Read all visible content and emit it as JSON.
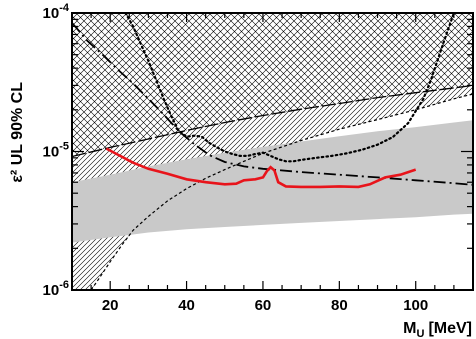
{
  "chart_data": {
    "type": "line",
    "title": "",
    "xlabel": "M",
    "xlabel_sub": "U",
    "xlabel_unit": "[MeV]",
    "ylabel": "ε² UL 90% CL",
    "xlim": [
      10,
      115
    ],
    "ylim": [
      1e-06,
      0.0001
    ],
    "yscale": "log",
    "grid": false,
    "legend": "none",
    "x_ticks": [
      20,
      40,
      60,
      80,
      100
    ],
    "x_tick_labels": [
      "20",
      "40",
      "60",
      "80",
      "100"
    ],
    "y_ticks": [
      1e-06,
      1e-05,
      0.0001
    ],
    "y_tick_labels": [
      {
        "base": "10",
        "exp": "-6"
      },
      {
        "base": "10",
        "exp": "-5"
      },
      {
        "base": "10",
        "exp": "-4"
      }
    ],
    "colors": {
      "main_limit": "#e8141b",
      "expected_band": "#c9c9c9",
      "hatch": "#000000"
    },
    "series": [
      {
        "style": "solid-red",
        "x": [
          19,
          22,
          26,
          30,
          35,
          40,
          45,
          50,
          53,
          55,
          58,
          60,
          61,
          62,
          63,
          64,
          66,
          70,
          75,
          80,
          85,
          88,
          92,
          96,
          100
        ],
        "y": [
          1.05e-05,
          9.5e-06,
          8.3e-06,
          7.5e-06,
          6.9e-06,
          6.3e-06,
          6e-06,
          5.8e-06,
          5.85e-06,
          6.2e-06,
          6.3e-06,
          6.5e-06,
          7.2e-06,
          7.7e-06,
          7.3e-06,
          6e-06,
          5.6e-06,
          5.55e-06,
          5.55e-06,
          5.6e-06,
          5.55e-06,
          5.8e-06,
          6.5e-06,
          6.8e-06,
          7.4e-06
        ]
      },
      {
        "style": "dashdot-black",
        "x": [
          10,
          14,
          18,
          22,
          26,
          30,
          34,
          38,
          42,
          46,
          50,
          55,
          60,
          70,
          80,
          90,
          100,
          110,
          115
        ],
        "y": [
          8.5e-05,
          6.3e-05,
          5e-05,
          3.9e-05,
          3.1e-05,
          2.4e-05,
          1.85e-05,
          1.4e-05,
          1.13e-05,
          9.4e-06,
          8.4e-06,
          7.8e-06,
          7.5e-06,
          7.1e-06,
          6.8e-06,
          6.5e-06,
          6.2e-06,
          5.9e-06,
          5.75e-06
        ]
      },
      {
        "style": "dotted-black",
        "x": [
          24,
          26,
          28,
          30,
          32,
          34,
          36,
          38,
          40,
          42,
          44,
          46,
          48,
          50,
          52,
          54,
          56,
          58,
          60,
          62,
          64,
          66,
          68,
          70,
          74,
          78,
          82,
          86,
          90,
          94,
          98,
          102,
          104,
          106,
          108,
          110
        ],
        "y": [
          0.0001,
          8e-05,
          6e-05,
          4.5e-05,
          3.3e-05,
          2.4e-05,
          1.8e-05,
          1.4e-05,
          1.28e-05,
          1.3e-05,
          1.28e-05,
          1.15e-05,
          1.07e-05,
          1e-05,
          9.6e-06,
          9.3e-06,
          9.3e-06,
          9.6e-06,
          9.8e-06,
          9.3e-06,
          8.8e-06,
          8.5e-06,
          8.5e-06,
          8.7e-06,
          9e-06,
          9.3e-06,
          9.7e-06,
          1.03e-05,
          1.12e-05,
          1.27e-05,
          1.6e-05,
          2.4e-05,
          3.3e-05,
          4.8e-05,
          7e-05,
          0.0001
        ]
      },
      {
        "style": "short-dash-black",
        "x": [
          15,
          17,
          20,
          23,
          26,
          30,
          35,
          40,
          45,
          50,
          55,
          60,
          70,
          80,
          90,
          100,
          110,
          115
        ],
        "y": [
          1e-06,
          1.2e-06,
          1.6e-06,
          2.1e-06,
          2.7e-06,
          3.4e-06,
          4.4e-06,
          5.4e-06,
          6.4e-06,
          7.4e-06,
          8.5e-06,
          9.7e-06,
          1.2e-05,
          1.45e-05,
          1.7e-05,
          2e-05,
          2.4e-05,
          2.6e-05
        ]
      },
      {
        "style": "long-dash-black",
        "x": [
          10,
          20,
          30,
          40,
          50,
          60,
          70,
          80,
          90,
          100,
          110,
          115
        ],
        "y": [
          9.2e-06,
          1.07e-05,
          1.23e-05,
          1.42e-05,
          1.62e-05,
          1.82e-05,
          2.02e-05,
          2.22e-05,
          2.45e-05,
          2.66e-05,
          2.88e-05,
          3e-05
        ]
      }
    ],
    "band": {
      "x": [
        10,
        20,
        30,
        40,
        50,
        60,
        70,
        80,
        90,
        100,
        110,
        115
      ],
      "low": [
        2.2e-06,
        2.4e-06,
        2.6e-06,
        2.75e-06,
        2.85e-06,
        2.95e-06,
        3.05e-06,
        3.15e-06,
        3.25e-06,
        3.35e-06,
        3.5e-06,
        3.55e-06
      ],
      "high": [
        6e-06,
        6.8e-06,
        7.8e-06,
        8.8e-06,
        9.8e-06,
        1.08e-05,
        1.18e-05,
        1.29e-05,
        1.4e-05,
        1.5e-05,
        1.62e-05,
        1.68e-05
      ]
    }
  }
}
